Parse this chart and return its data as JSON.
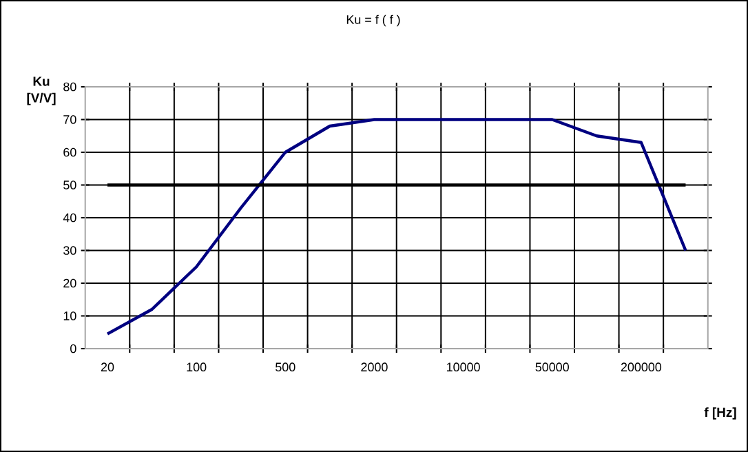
{
  "chart_data": {
    "type": "line",
    "title": "Ku = f ( f )",
    "xlabel": "f [Hz]",
    "ylabel": "Ku [V/V]",
    "categories": [
      "20",
      null,
      "100",
      null,
      "500",
      null,
      "2000",
      null,
      "10000",
      null,
      "50000",
      null,
      "200000",
      null
    ],
    "series": [
      {
        "color": "#000080",
        "values": [
          4.5,
          12,
          25,
          43,
          60,
          68,
          70,
          70,
          70,
          70,
          70,
          65,
          63,
          30
        ]
      },
      {
        "color": "#000000",
        "values": [
          50,
          50,
          50,
          50,
          50,
          50,
          50,
          50,
          50,
          50,
          50,
          50,
          50,
          50
        ]
      }
    ],
    "ylim": [
      0,
      80
    ],
    "yticks": [
      0,
      10,
      20,
      30,
      40,
      50,
      60,
      70,
      80
    ],
    "grid": true,
    "marker": "none",
    "line_style": "solid"
  }
}
